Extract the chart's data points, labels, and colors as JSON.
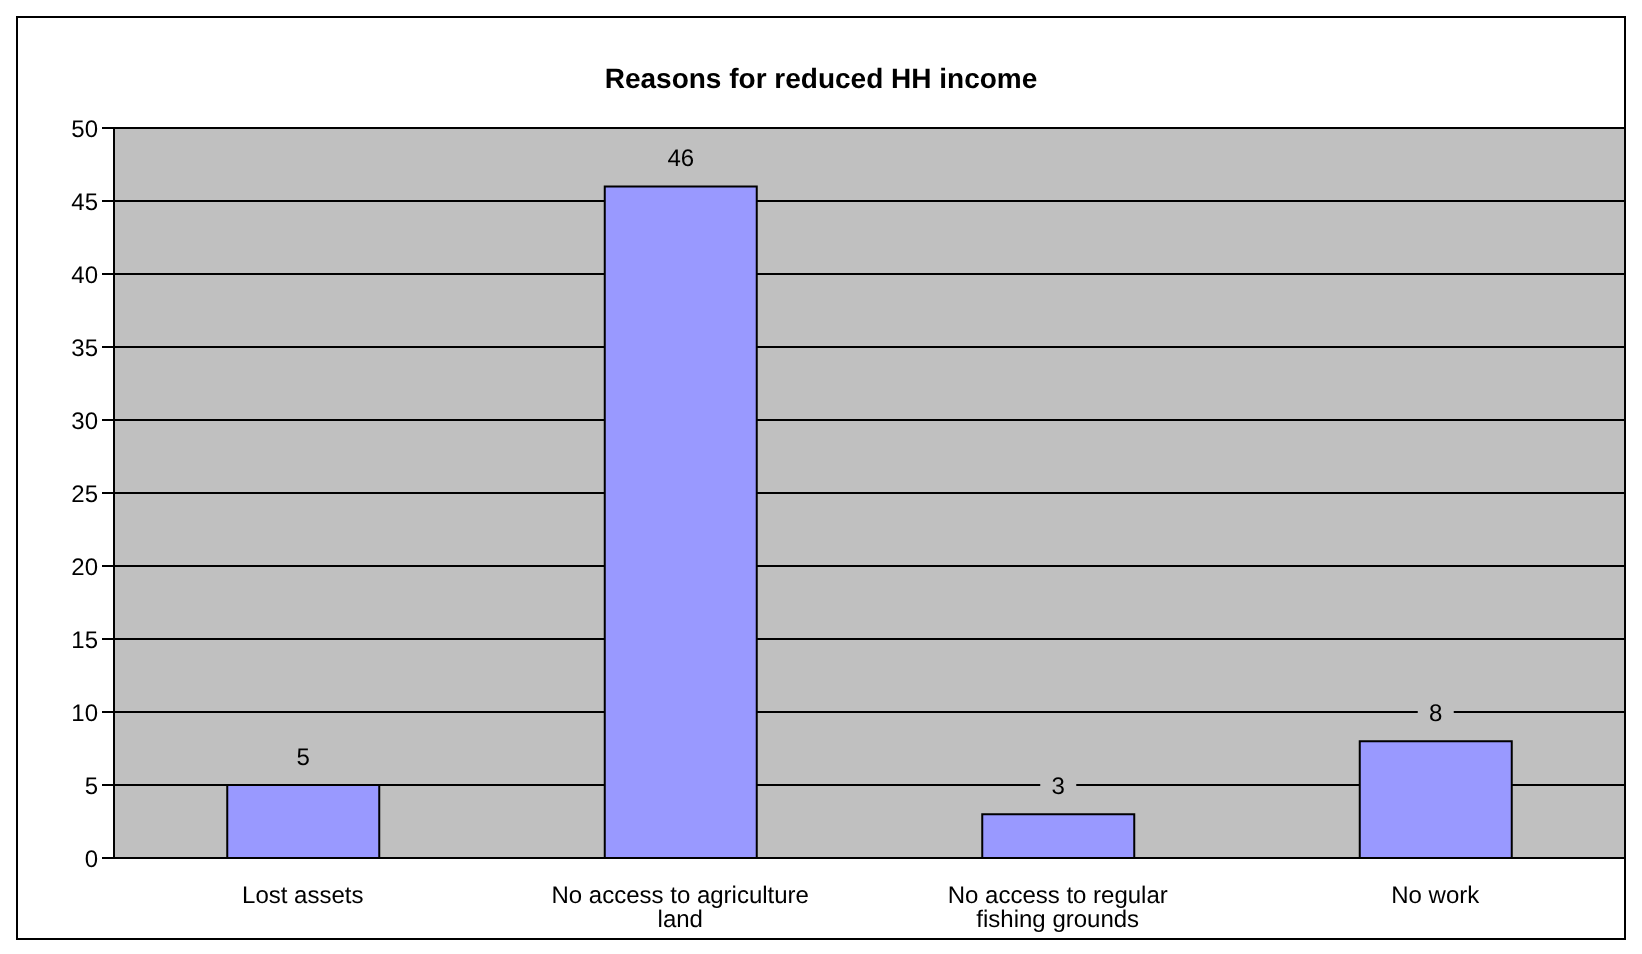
{
  "chart_data": {
    "type": "bar",
    "title": "Reasons for reduced HH income",
    "categories": [
      "Lost assets",
      "No access to agriculture land",
      "No access to regular fishing grounds",
      "No work"
    ],
    "values": [
      5,
      46,
      3,
      8
    ],
    "color": "#9999ff",
    "ylim": [
      0,
      50
    ],
    "yticks": [
      0,
      5,
      10,
      15,
      20,
      25,
      30,
      35,
      40,
      45,
      50
    ],
    "grid": "y",
    "data_labels": true
  }
}
